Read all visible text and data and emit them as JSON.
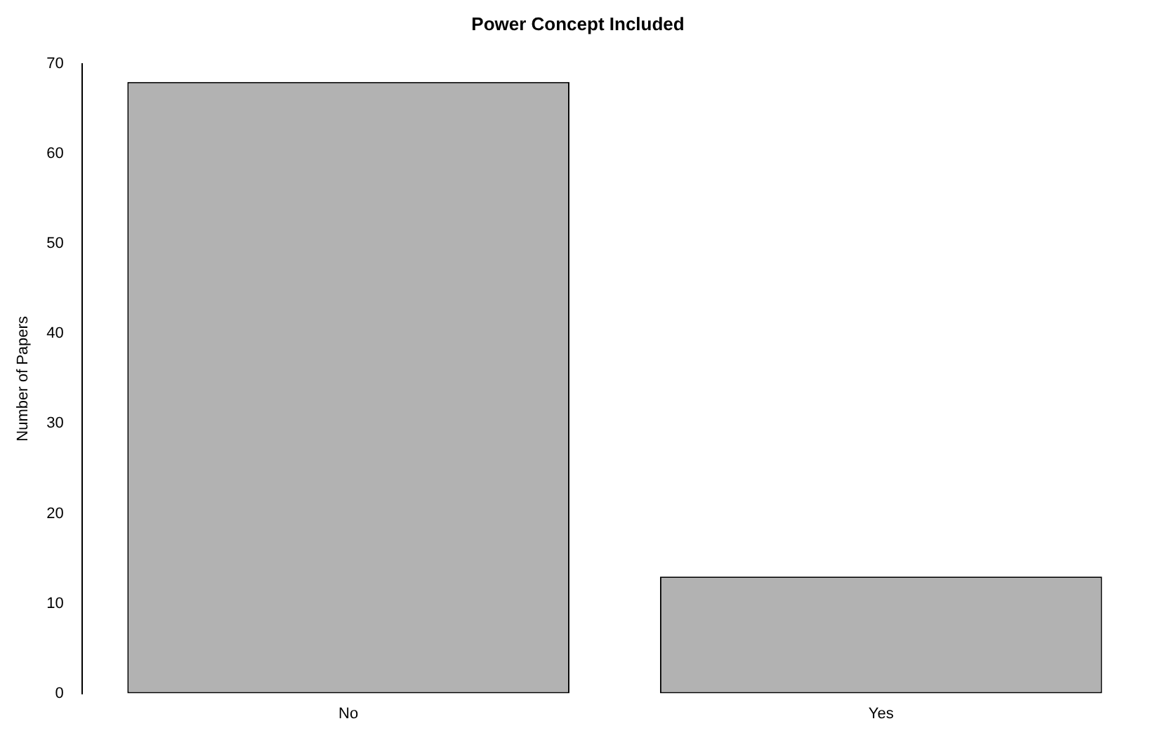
{
  "chart_data": {
    "type": "bar",
    "title": "Power Concept Included",
    "ylabel": "Number of Papers",
    "categories": [
      "No",
      "Yes"
    ],
    "values": [
      68,
      13
    ],
    "color": "#b2b2b2",
    "ylim": [
      0,
      70
    ],
    "yticks": [
      0,
      10,
      20,
      30,
      40,
      50,
      60,
      70
    ],
    "grid": false,
    "legend": false
  }
}
